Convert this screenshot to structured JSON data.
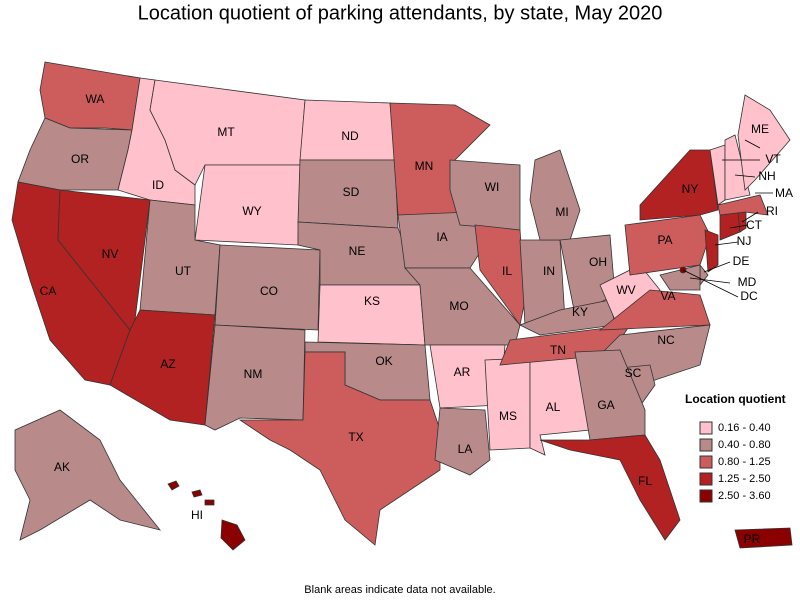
{
  "title": "Location quotient of parking attendants, by state, May 2020",
  "note": "Blank areas indicate data not available.",
  "legend": {
    "title": "Location quotient",
    "items": [
      {
        "label": "0.16 - 0.40",
        "color": "#ffc1cb",
        "states": [
          "MT",
          "ID",
          "WY",
          "ND",
          "KS",
          "AR",
          "MS",
          "AL",
          "WV",
          "ME",
          "VT",
          "NH"
        ]
      },
      {
        "label": "0.40 - 0.80",
        "color": "#b88a8a",
        "states": [
          "OR",
          "UT",
          "CO",
          "NM",
          "SD",
          "NE",
          "OK",
          "IA",
          "MO",
          "WI",
          "MI",
          "IN",
          "OH",
          "KY",
          "NC",
          "SC",
          "GA",
          "LA",
          "AK",
          "DE",
          "MD"
        ]
      },
      {
        "label": "0.80 - 1.25",
        "color": "#cd5c5c",
        "states": [
          "WA",
          "MN",
          "IL",
          "TX",
          "TN",
          "VA",
          "PA",
          "MA"
        ]
      },
      {
        "label": "1.25 - 2.50",
        "color": "#b22222",
        "states": [
          "CA",
          "NV",
          "AZ",
          "NY",
          "FL",
          "CT",
          "RI",
          "NJ"
        ]
      },
      {
        "label": "2.50 - 3.60",
        "color": "#8b0000",
        "states": [
          "HI",
          "PR",
          "DC"
        ]
      }
    ]
  }
}
